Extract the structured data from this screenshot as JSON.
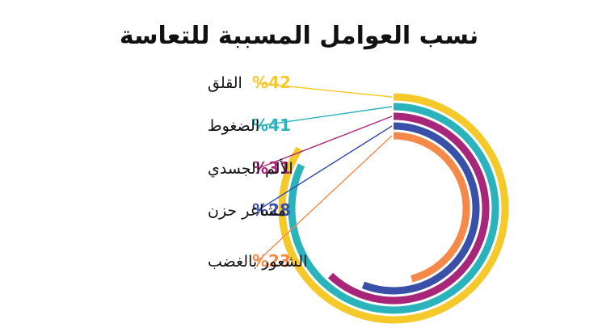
{
  "chart_data": {
    "type": "radial-bar",
    "title": "نسب العوامل المسببة للتعاسة",
    "unit": "%",
    "series": [
      {
        "name": "القلق",
        "value": 42,
        "label": "%42",
        "color": "#F5C92A"
      },
      {
        "name": "الضغوط",
        "value": 41,
        "label": "%41",
        "color": "#2BB3BC"
      },
      {
        "name": "الألم الجسدي",
        "value": 31,
        "label": "%31",
        "color": "#A8267A"
      },
      {
        "name": "مشاعر حزن",
        "value": 28,
        "label": "%28",
        "color": "#3A50A8"
      },
      {
        "name": "الشعور بالغضب",
        "value": 23,
        "label": "%23",
        "color": "#F5894A"
      }
    ],
    "grid": false,
    "legend": "left"
  }
}
